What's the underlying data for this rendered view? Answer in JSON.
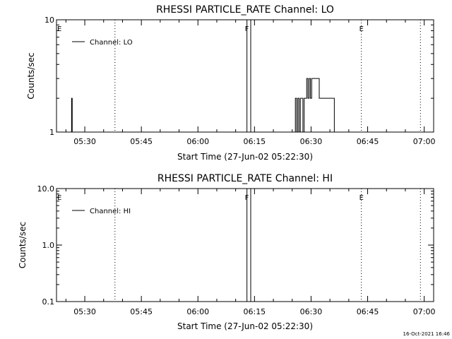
{
  "chart_data": [
    {
      "type": "line",
      "title": "RHESSI PARTICLE_RATE Channel: LO",
      "xlabel": "Start Time (27-Jun-02 05:22:30)",
      "ylabel": "Counts/sec",
      "yscale": "log",
      "xlim": [
        "05:22:30",
        "07:02:30"
      ],
      "ylim": [
        1,
        10
      ],
      "xticks": [
        "05:30",
        "05:45",
        "06:00",
        "06:15",
        "06:30",
        "06:45",
        "07:00"
      ],
      "yticks": [
        "1",
        "10"
      ],
      "legend": {
        "placement": "top-left",
        "entries": [
          "Channel: LO"
        ]
      },
      "markers": [
        {
          "label": "E",
          "time": "05:22:30",
          "style": "none"
        },
        {
          "label": "",
          "time": "05:38:00",
          "style": "dotted"
        },
        {
          "label": "F",
          "time": "06:13:00",
          "style": "solid"
        },
        {
          "label": "",
          "time": "06:14:00",
          "style": "solid"
        },
        {
          "label": "E",
          "time": "06:43:20",
          "style": "dotted"
        },
        {
          "label": "",
          "time": "06:59:00",
          "style": "dotted"
        }
      ],
      "series": [
        {
          "x": [
            "05:26:20",
            "05:26:30",
            "05:26:40",
            "05:26:50",
            "06:25:30",
            "06:25:50",
            "06:26:10",
            "06:26:30",
            "06:26:50",
            "06:27:10",
            "06:27:30",
            "06:27:50",
            "06:28:10",
            "06:28:30",
            "06:28:50",
            "06:29:10",
            "06:29:30",
            "06:29:50",
            "06:30:10",
            "06:30:30",
            "06:30:50",
            "06:31:10",
            "06:31:30",
            "06:31:50",
            "06:32:10",
            "06:32:30",
            "06:32:50",
            "06:33:10",
            "06:33:30",
            "06:33:50",
            "06:34:10",
            "06:34:30",
            "06:34:50",
            "06:35:10",
            "06:35:30",
            "06:35:50",
            "06:36:10"
          ],
          "values": [
            1,
            2,
            1,
            1,
            1,
            2,
            1,
            2,
            1,
            2,
            2,
            1,
            2,
            2,
            3,
            2,
            3,
            2,
            3,
            3,
            3,
            3,
            3,
            3,
            2,
            2,
            2,
            2,
            2,
            2,
            2,
            2,
            2,
            2,
            2,
            2,
            1
          ]
        }
      ]
    },
    {
      "type": "line",
      "title": "RHESSI PARTICLE_RATE Channel: HI",
      "xlabel": "Start Time (27-Jun-02 05:22:30)",
      "ylabel": "Counts/sec",
      "yscale": "log",
      "xlim": [
        "05:22:30",
        "07:02:30"
      ],
      "ylim": [
        0.1,
        10
      ],
      "xticks": [
        "05:30",
        "05:45",
        "06:00",
        "06:15",
        "06:30",
        "06:45",
        "07:00"
      ],
      "yticks": [
        "0.1",
        "1.0",
        "10.0"
      ],
      "legend": {
        "placement": "top-left",
        "entries": [
          "Channel: HI"
        ]
      },
      "markers": [
        {
          "label": "E",
          "time": "05:22:30",
          "style": "none"
        },
        {
          "label": "",
          "time": "05:38:00",
          "style": "dotted"
        },
        {
          "label": "F",
          "time": "06:13:00",
          "style": "solid"
        },
        {
          "label": "",
          "time": "06:14:00",
          "style": "solid"
        },
        {
          "label": "E",
          "time": "06:43:20",
          "style": "dotted"
        },
        {
          "label": "",
          "time": "06:59:00",
          "style": "dotted"
        }
      ],
      "series": []
    }
  ],
  "footer": {
    "timestamp": "16-Oct-2021 16:46"
  }
}
